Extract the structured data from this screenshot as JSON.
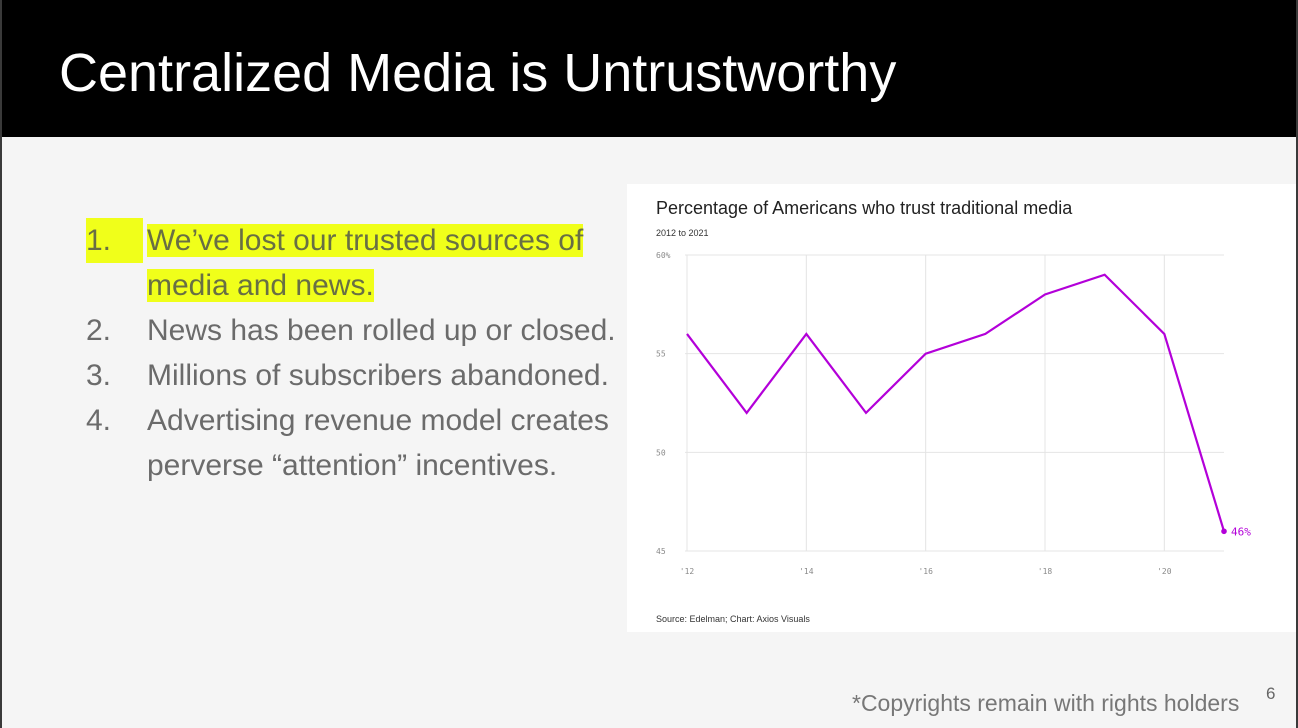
{
  "slide": {
    "title": "Centralized Media is Untrustworthy",
    "page_number": "6",
    "copyright": "*Copyrights remain with rights holders"
  },
  "bullets": [
    {
      "number": "1.",
      "text": "We’ve lost our trusted sources of media and news.",
      "highlighted": true
    },
    {
      "number": "2.",
      "text": "News has been rolled up or closed.",
      "highlighted": false
    },
    {
      "number": "3.",
      "text": "Millions of subscribers abandoned.",
      "highlighted": false
    },
    {
      "number": "4.",
      "text": "Advertising revenue model creates perverse “attention” incentives.",
      "highlighted": false
    }
  ],
  "chart_data": {
    "type": "line",
    "title": "Percentage of Americans who trust traditional media",
    "subtitle": "2012 to 2021",
    "source": "Source: Edelman; Chart: Axios Visuals",
    "x": [
      2012,
      2013,
      2014,
      2015,
      2016,
      2017,
      2018,
      2019,
      2020,
      2021
    ],
    "values": [
      56,
      52,
      56,
      52,
      55,
      56,
      58,
      59,
      56,
      46
    ],
    "ylim": [
      45,
      60
    ],
    "y_ticks": [
      {
        "value": 60,
        "label": "60%"
      },
      {
        "value": 55,
        "label": "55"
      },
      {
        "value": 50,
        "label": "50"
      },
      {
        "value": 45,
        "label": "45"
      }
    ],
    "x_ticks": [
      {
        "value": 2012,
        "label": "'12"
      },
      {
        "value": 2014,
        "label": "'14"
      },
      {
        "value": 2016,
        "label": "'16"
      },
      {
        "value": 2018,
        "label": "'18"
      },
      {
        "value": 2020,
        "label": "'20"
      }
    ],
    "end_label": "46%",
    "line_color": "#b300d9",
    "grid": true
  },
  "colors": {
    "title_bar": "#000000",
    "highlight": "#f0ff1a",
    "line": "#b300d9"
  }
}
